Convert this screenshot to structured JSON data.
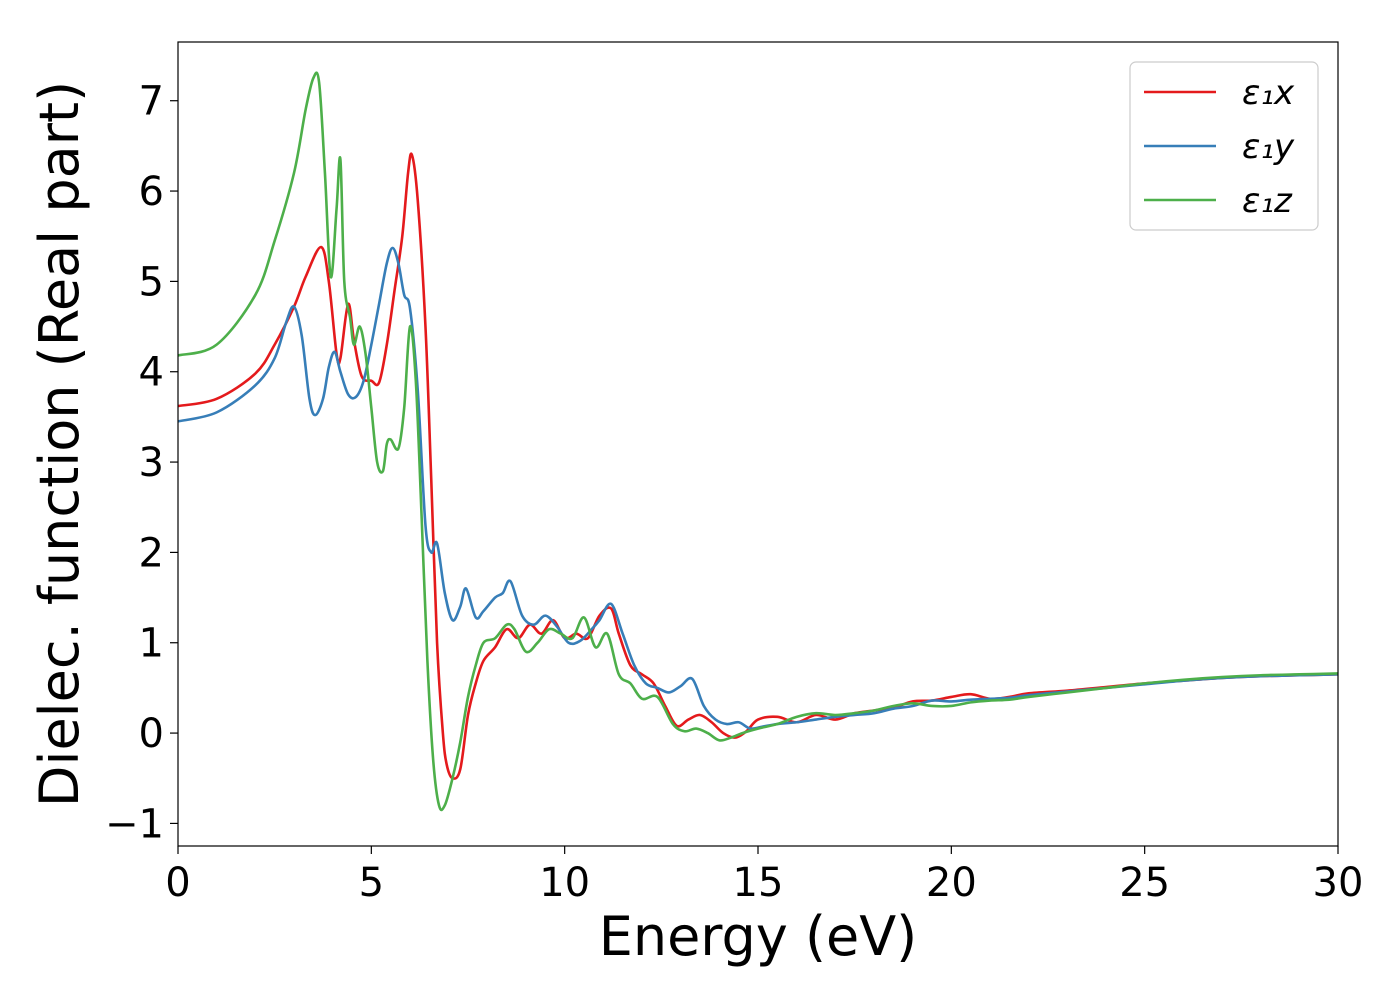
{
  "chart_data": {
    "type": "line",
    "title": "",
    "xlabel": "Energy (eV)",
    "ylabel": "Dielec. function (Real part)",
    "xlim": [
      0,
      30
    ],
    "ylim": [
      -1.25,
      7.65
    ],
    "xticks": [
      0,
      5,
      10,
      15,
      20,
      25,
      30
    ],
    "xtick_labels": [
      "0",
      "5",
      "10",
      "15",
      "20",
      "25",
      "30"
    ],
    "yticks": [
      -1,
      0,
      1,
      2,
      3,
      4,
      5,
      6,
      7
    ],
    "ytick_labels": [
      "−1",
      "0",
      "1",
      "2",
      "3",
      "4",
      "5",
      "6",
      "7"
    ],
    "grid": false,
    "legend_position": "top-right",
    "series": [
      {
        "name": "ε₁x",
        "color": "#e41a1c",
        "x": [
          0,
          1,
          2,
          2.5,
          3,
          3.3,
          3.7,
          3.9,
          4.1,
          4.2,
          4.4,
          4.55,
          4.75,
          5,
          5.2,
          5.4,
          5.6,
          5.8,
          5.95,
          6.05,
          6.2,
          6.4,
          6.55,
          6.7,
          6.85,
          6.95,
          7.1,
          7.3,
          7.5,
          7.7,
          7.9,
          8.2,
          8.5,
          8.8,
          9.1,
          9.4,
          9.7,
          10,
          10.3,
          10.6,
          10.9,
          11.2,
          11.4,
          11.7,
          12,
          12.3,
          12.6,
          12.9,
          13.2,
          13.5,
          13.8,
          14.1,
          14.4,
          14.7,
          15,
          15.5,
          16,
          16.5,
          17,
          17.5,
          18,
          18.5,
          19,
          19.5,
          20,
          20.5,
          21,
          21.5,
          22,
          23,
          24,
          25,
          26,
          27,
          28,
          29,
          30
        ],
        "y": [
          3.62,
          3.7,
          3.98,
          4.3,
          4.72,
          5.05,
          5.38,
          5.0,
          4.2,
          4.15,
          4.75,
          4.35,
          3.95,
          3.9,
          3.88,
          4.3,
          4.9,
          5.5,
          6.2,
          6.4,
          5.9,
          4.5,
          2.8,
          1.0,
          0.0,
          -0.35,
          -0.5,
          -0.4,
          0.2,
          0.55,
          0.8,
          0.95,
          1.15,
          1.05,
          1.2,
          1.1,
          1.25,
          1.05,
          1.1,
          1.05,
          1.3,
          1.38,
          1.1,
          0.75,
          0.65,
          0.55,
          0.3,
          0.08,
          0.15,
          0.2,
          0.12,
          0.0,
          -0.05,
          0.02,
          0.15,
          0.18,
          0.12,
          0.2,
          0.15,
          0.22,
          0.25,
          0.28,
          0.35,
          0.36,
          0.4,
          0.43,
          0.38,
          0.4,
          0.44,
          0.47,
          0.51,
          0.55,
          0.58,
          0.61,
          0.63,
          0.64,
          0.65
        ]
      },
      {
        "name": "ε₁y",
        "color": "#377eb8",
        "x": [
          0,
          1,
          2,
          2.5,
          2.8,
          3.0,
          3.2,
          3.4,
          3.55,
          3.75,
          3.9,
          4.05,
          4.2,
          4.4,
          4.6,
          4.8,
          5.0,
          5.2,
          5.4,
          5.55,
          5.7,
          5.85,
          6.0,
          6.2,
          6.4,
          6.55,
          6.7,
          6.9,
          7.1,
          7.3,
          7.45,
          7.7,
          7.9,
          8.2,
          8.4,
          8.6,
          8.9,
          9.2,
          9.5,
          9.8,
          10.1,
          10.4,
          10.7,
          10.9,
          11.2,
          11.5,
          11.8,
          12.1,
          12.4,
          12.7,
          13.0,
          13.3,
          13.6,
          13.9,
          14.2,
          14.5,
          14.8,
          15.1,
          15.5,
          16,
          16.5,
          17,
          17.5,
          18,
          18.5,
          19,
          19.5,
          20,
          20.5,
          21,
          21.5,
          22,
          23,
          24,
          25,
          26,
          27,
          28,
          29,
          30
        ],
        "y": [
          3.45,
          3.55,
          3.85,
          4.15,
          4.55,
          4.72,
          4.4,
          3.7,
          3.52,
          3.7,
          4.05,
          4.22,
          4.0,
          3.75,
          3.72,
          3.9,
          4.3,
          4.75,
          5.2,
          5.37,
          5.2,
          4.85,
          4.7,
          3.8,
          2.3,
          2.0,
          2.1,
          1.55,
          1.25,
          1.4,
          1.6,
          1.28,
          1.35,
          1.5,
          1.55,
          1.68,
          1.3,
          1.2,
          1.3,
          1.18,
          1.0,
          1.02,
          1.15,
          1.25,
          1.43,
          1.1,
          0.75,
          0.55,
          0.5,
          0.45,
          0.52,
          0.6,
          0.3,
          0.15,
          0.1,
          0.12,
          0.05,
          0.07,
          0.1,
          0.12,
          0.15,
          0.18,
          0.2,
          0.22,
          0.27,
          0.3,
          0.36,
          0.35,
          0.37,
          0.38,
          0.39,
          0.42,
          0.46,
          0.5,
          0.54,
          0.58,
          0.61,
          0.63,
          0.64,
          0.65
        ]
      },
      {
        "name": "ε₁z",
        "color": "#4daf4a",
        "x": [
          0,
          1,
          2,
          2.5,
          3.0,
          3.3,
          3.5,
          3.65,
          3.8,
          3.95,
          4.1,
          4.2,
          4.3,
          4.45,
          4.55,
          4.7,
          4.85,
          5.0,
          5.15,
          5.3,
          5.4,
          5.5,
          5.7,
          5.85,
          6.0,
          6.15,
          6.3,
          6.45,
          6.6,
          6.75,
          6.9,
          7.1,
          7.3,
          7.5,
          7.7,
          7.9,
          8.2,
          8.5,
          8.7,
          9.0,
          9.3,
          9.6,
          9.9,
          10.2,
          10.5,
          10.8,
          11.1,
          11.4,
          11.7,
          12.0,
          12.4,
          12.8,
          13.1,
          13.4,
          13.7,
          14.0,
          14.3,
          14.6,
          15.0,
          15.5,
          16,
          16.5,
          17,
          17.5,
          18,
          18.5,
          19,
          19.5,
          20,
          20.5,
          21,
          21.5,
          22,
          23,
          24,
          25,
          26,
          27,
          28,
          29,
          30
        ],
        "y": [
          4.18,
          4.3,
          4.85,
          5.45,
          6.2,
          6.9,
          7.25,
          7.2,
          6.2,
          5.05,
          5.8,
          6.35,
          5.0,
          4.6,
          4.3,
          4.5,
          4.2,
          3.6,
          3.0,
          2.9,
          3.2,
          3.25,
          3.15,
          3.6,
          4.5,
          3.9,
          2.4,
          0.8,
          -0.3,
          -0.8,
          -0.8,
          -0.5,
          -0.1,
          0.4,
          0.75,
          1.0,
          1.05,
          1.2,
          1.15,
          0.9,
          1.0,
          1.15,
          1.1,
          1.05,
          1.28,
          0.95,
          1.1,
          0.65,
          0.55,
          0.38,
          0.4,
          0.1,
          0.02,
          0.05,
          0.0,
          -0.08,
          -0.05,
          0.0,
          0.05,
          0.1,
          0.18,
          0.22,
          0.2,
          0.22,
          0.25,
          0.3,
          0.33,
          0.3,
          0.3,
          0.34,
          0.36,
          0.37,
          0.4,
          0.45,
          0.5,
          0.55,
          0.59,
          0.62,
          0.64,
          0.65,
          0.66
        ]
      }
    ]
  }
}
